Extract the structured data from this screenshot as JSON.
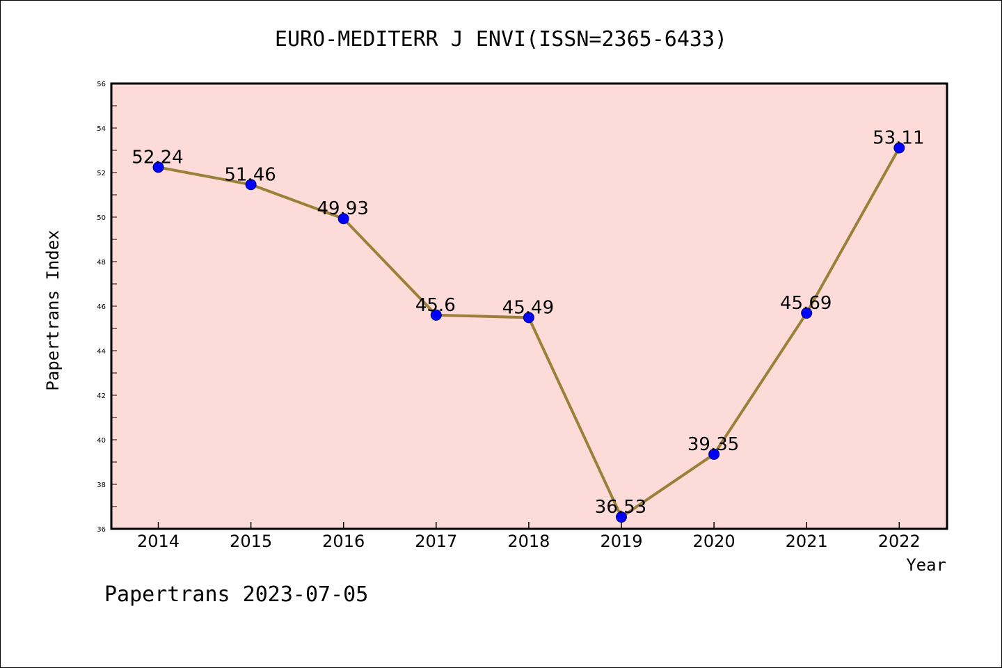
{
  "chart_data": {
    "type": "line",
    "title": "EURO-MEDITERR J ENVI(ISSN=2365-6433)",
    "xlabel": "Year",
    "ylabel": "Papertrans Index",
    "categories": [
      "2014",
      "2015",
      "2016",
      "2017",
      "2018",
      "2019",
      "2020",
      "2021",
      "2022"
    ],
    "values": [
      52.24,
      51.46,
      49.93,
      45.6,
      45.49,
      36.53,
      39.35,
      45.69,
      53.11
    ],
    "data_labels": [
      "52.24",
      "51.46",
      "49.93",
      "45.6",
      "45.49",
      "36.53",
      "39.35",
      "45.69",
      "53.11"
    ],
    "ylim": [
      36,
      56
    ],
    "yticks": [
      36,
      38,
      40,
      42,
      44,
      46,
      48,
      50,
      52,
      54,
      56
    ],
    "grid": false,
    "colors": {
      "plot_background": "#fddbd8",
      "line": "#9c8039",
      "marker": "#0000ff"
    }
  },
  "footer": "Papertrans 2023-07-05"
}
